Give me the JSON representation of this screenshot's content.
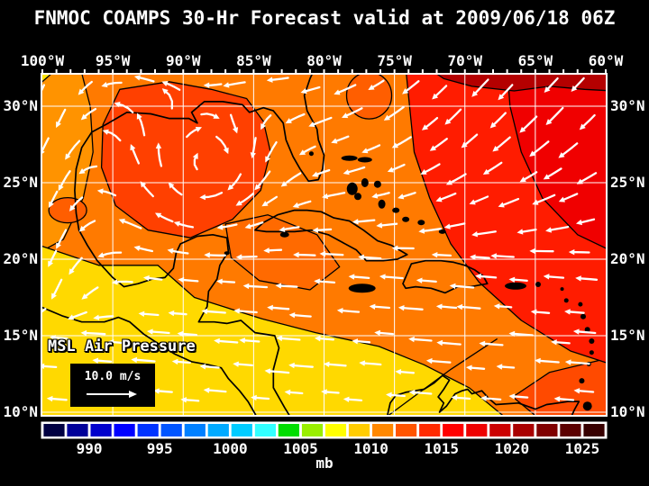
{
  "title": "FNMOC COAMPS 30-Hr Forecast valid at 2009/06/18 06Z",
  "map": {
    "overlay_label": "MSL Air Pressure",
    "wind_legend_label": "10.0 m/s",
    "lon_labels": [
      "100°W",
      "95°W",
      "90°W",
      "85°W",
      "80°W",
      "75°W",
      "70°W",
      "65°W",
      "60°W"
    ],
    "lat_labels": [
      "30°N",
      "25°N",
      "20°N",
      "15°N",
      "10°N"
    ],
    "extent": {
      "lon_min": -100,
      "lon_max": -60,
      "lat_min": 10,
      "lat_max": 30
    },
    "wind_arrow_color": "#ffffff",
    "grid_color": "#ffffff",
    "coast_color": "#000000",
    "region_colors": {
      "base_orange": "#FF7A00",
      "west_band": "#FF9300",
      "low_yellow": "#FFD900",
      "corner_yellow": "#FFE400",
      "gulf_core": "#FF4000",
      "west_blob": "#FF5E00",
      "nw_caribbean": "#FF6A00",
      "atlantic_red": "#FF1C00",
      "atlantic_deep_red": "#F00000",
      "corner_dark_red": "#B40000",
      "bahama_patch": "#FF5E00",
      "se_corner_red": "#FF4A00"
    }
  },
  "colorbar": {
    "unit": "mb",
    "tick_labels": [
      "990",
      "995",
      "1000",
      "1005",
      "1010",
      "1015",
      "1020",
      "1025"
    ],
    "segment_colors": [
      "#000042",
      "#000099",
      "#0000CC",
      "#0000FF",
      "#0033FF",
      "#0055FF",
      "#0080FF",
      "#00AAFF",
      "#00CCFF",
      "#33FFFF",
      "#00DD00",
      "#99EE00",
      "#FFFF00",
      "#FFCC00",
      "#FF8800",
      "#FF5500",
      "#FF2A00",
      "#FF0000",
      "#EE0000",
      "#CC0000",
      "#AA0000",
      "#800000",
      "#5C0000",
      "#380000"
    ]
  }
}
